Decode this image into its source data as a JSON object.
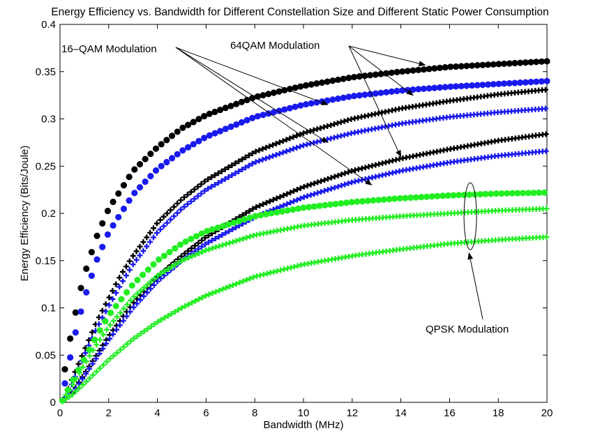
{
  "chart_data": {
    "type": "scatter",
    "title": "Energy Efficiency vs. Bandwidth for Different Constellation Size and Different Static Power Consumption",
    "xlabel": "Bandwidth (MHz)",
    "ylabel": "Energy Efficiency (Bits/Joule)",
    "xlim": [
      0,
      20
    ],
    "ylim": [
      0,
      0.4
    ],
    "xticks": [
      "0",
      "2",
      "4",
      "6",
      "8",
      "10",
      "12",
      "14",
      "16",
      "18",
      "20"
    ],
    "yticks": [
      "0",
      "0.05",
      "0.1",
      "0.15",
      "0.2",
      "0.25",
      "0.3",
      "0.35",
      "0.4"
    ],
    "grid": false,
    "colors": {
      "black": "#000000",
      "blue": "#1a1aee",
      "green": "#22ee22"
    },
    "series": [
      {
        "color": "black",
        "marker": "circle",
        "x": [
          0.2,
          0.4,
          0.6,
          0.8,
          1,
          1.5,
          2,
          3,
          4,
          5,
          6,
          8,
          10,
          12,
          14,
          16,
          18,
          20
        ],
        "values": [
          0.035,
          0.065,
          0.09,
          0.115,
          0.135,
          0.175,
          0.205,
          0.245,
          0.27,
          0.29,
          0.304,
          0.323,
          0.335,
          0.344,
          0.35,
          0.355,
          0.358,
          0.361
        ]
      },
      {
        "color": "blue",
        "marker": "circle",
        "x": [
          0.2,
          0.4,
          0.6,
          0.8,
          1,
          1.5,
          2,
          3,
          4,
          5,
          6,
          8,
          10,
          12,
          14,
          16,
          18,
          20
        ],
        "values": [
          0.02,
          0.045,
          0.07,
          0.09,
          0.11,
          0.15,
          0.18,
          0.22,
          0.247,
          0.266,
          0.281,
          0.302,
          0.315,
          0.324,
          0.33,
          0.334,
          0.337,
          0.34
        ]
      },
      {
        "color": "black",
        "marker": "plus",
        "x": [
          0.2,
          0.5,
          1,
          1.5,
          2,
          2.5,
          3,
          4,
          5,
          6,
          8,
          10,
          12,
          14,
          16,
          18,
          20
        ],
        "values": [
          0.005,
          0.025,
          0.055,
          0.085,
          0.11,
          0.135,
          0.155,
          0.19,
          0.215,
          0.235,
          0.265,
          0.285,
          0.3,
          0.311,
          0.319,
          0.326,
          0.331
        ]
      },
      {
        "color": "blue",
        "marker": "plus",
        "x": [
          0.2,
          0.5,
          1,
          1.5,
          2,
          2.5,
          3,
          4,
          5,
          6,
          8,
          10,
          12,
          14,
          16,
          18,
          20
        ],
        "values": [
          0.004,
          0.02,
          0.05,
          0.078,
          0.102,
          0.125,
          0.146,
          0.18,
          0.205,
          0.225,
          0.254,
          0.272,
          0.285,
          0.295,
          0.302,
          0.307,
          0.311
        ]
      },
      {
        "color": "black",
        "marker": "plus",
        "x": [
          0.5,
          1,
          2,
          3,
          4,
          5,
          6,
          8,
          10,
          12,
          14,
          16,
          18,
          20
        ],
        "values": [
          0.01,
          0.03,
          0.07,
          0.105,
          0.133,
          0.155,
          0.175,
          0.206,
          0.228,
          0.245,
          0.258,
          0.268,
          0.277,
          0.284
        ]
      },
      {
        "color": "blue",
        "marker": "plus",
        "x": [
          0.5,
          1,
          2,
          3,
          4,
          5,
          6,
          8,
          10,
          12,
          14,
          16,
          18,
          20
        ],
        "values": [
          0.009,
          0.028,
          0.066,
          0.1,
          0.128,
          0.15,
          0.168,
          0.196,
          0.217,
          0.233,
          0.245,
          0.254,
          0.261,
          0.266
        ]
      },
      {
        "color": "green",
        "marker": "circle",
        "x": [
          0.1,
          0.3,
          0.5,
          0.8,
          1,
          1.5,
          2,
          3,
          4,
          5,
          6,
          8,
          10,
          12,
          14,
          16,
          18,
          20
        ],
        "values": [
          0.002,
          0.012,
          0.022,
          0.036,
          0.046,
          0.07,
          0.092,
          0.125,
          0.15,
          0.168,
          0.181,
          0.197,
          0.206,
          0.212,
          0.216,
          0.219,
          0.221,
          0.222
        ]
      },
      {
        "color": "green",
        "marker": "plus",
        "x": [
          0.1,
          0.3,
          0.5,
          1,
          1.5,
          2,
          3,
          4,
          5,
          6,
          8,
          10,
          12,
          14,
          16,
          18,
          20
        ],
        "values": [
          0.002,
          0.01,
          0.018,
          0.04,
          0.061,
          0.08,
          0.111,
          0.134,
          0.15,
          0.161,
          0.177,
          0.187,
          0.193,
          0.197,
          0.2,
          0.203,
          0.205
        ]
      },
      {
        "color": "green",
        "marker": "plus",
        "x": [
          0.1,
          0.5,
          1,
          2,
          3,
          4,
          5,
          6,
          8,
          10,
          12,
          14,
          16,
          18,
          20
        ],
        "values": [
          0.001,
          0.008,
          0.02,
          0.045,
          0.067,
          0.085,
          0.1,
          0.113,
          0.133,
          0.146,
          0.155,
          0.162,
          0.168,
          0.172,
          0.175
        ]
      }
    ],
    "annotations": [
      {
        "text": "16–QAM Modulation",
        "arrows_to": [
          [
            11,
            0.315
          ],
          [
            11,
            0.275
          ],
          [
            12.8,
            0.23
          ]
        ]
      },
      {
        "text": "64QAM Modulation",
        "arrows_to": [
          [
            15,
            0.357
          ],
          [
            14.5,
            0.325
          ],
          [
            14,
            0.26
          ]
        ]
      },
      {
        "text": "QPSK Modulation",
        "arrows_to": [
          [
            16.8,
            0.158
          ]
        ]
      }
    ]
  }
}
